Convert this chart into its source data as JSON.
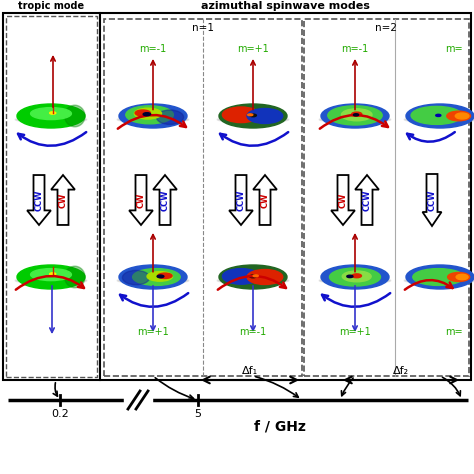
{
  "bg_color": "#ffffff",
  "left_box_label": "tropic mode",
  "center_box_label": "azimuthal spinwave modes",
  "n1_label": "n=1",
  "n2_label": "n=2",
  "m_labels_top_n1": [
    "m=-1",
    "m=+1"
  ],
  "m_labels_bot_n1": [
    "m=+1",
    "m=-1"
  ],
  "m_labels_top_n2": [
    "m=-1",
    "m="
  ],
  "m_labels_bot_n2": [
    "m=+1",
    "m="
  ],
  "m_color": "#22aa00",
  "cw_color": "#cc0000",
  "ccw_color": "#1111cc",
  "freq_label": "f / GHz",
  "freq_0p2": "0.2",
  "freq_5": "5",
  "delta_f1": "Δf₁",
  "delta_f2": "Δf₂",
  "red_arrow_color": "#cc0000",
  "blue_arrow_color": "#1111cc",
  "needle_red": "#aa0000",
  "needle_blue": "#3333cc"
}
